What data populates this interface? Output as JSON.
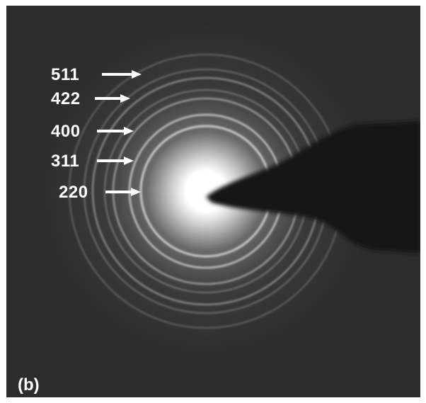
{
  "figure": {
    "panel_label": "(b)",
    "ring_labels": [
      {
        "text": "511"
      },
      {
        "text": "422"
      },
      {
        "text": "400"
      },
      {
        "text": "311"
      },
      {
        "text": "220"
      }
    ]
  },
  "colors": {
    "background": "#2c2c2c",
    "ring": "#d9d9d9",
    "beam_stop": "#151515",
    "label": "#ffffff"
  }
}
